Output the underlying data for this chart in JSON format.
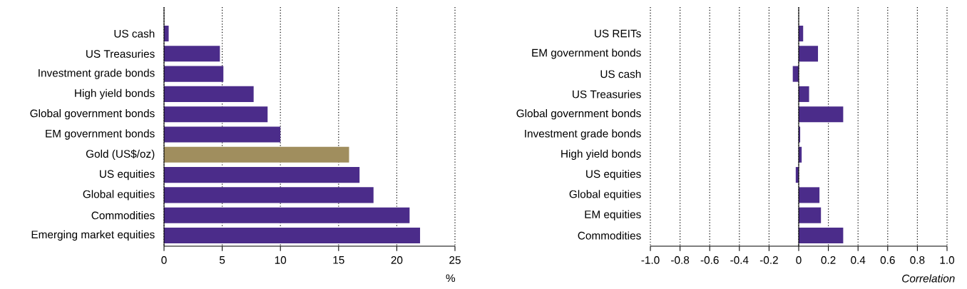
{
  "chart_data": [
    {
      "type": "bar",
      "orientation": "horizontal",
      "xlabel": "%",
      "categories": [
        "US cash",
        "US Treasuries",
        "Investment grade bonds",
        "High yield bonds",
        "Global government bonds",
        "EM government bonds",
        "Gold (US$/oz)",
        "US equities",
        "Global equities",
        "Commodities",
        "Emerging market equities"
      ],
      "values": [
        0.4,
        4.8,
        5.1,
        7.7,
        8.9,
        10.0,
        15.9,
        16.8,
        18.0,
        21.1,
        22.0
      ],
      "colors": [
        "#4b2c8a",
        "#4b2c8a",
        "#4b2c8a",
        "#4b2c8a",
        "#4b2c8a",
        "#4b2c8a",
        "#a08e5e",
        "#4b2c8a",
        "#4b2c8a",
        "#4b2c8a",
        "#4b2c8a"
      ],
      "xlim": [
        0,
        25
      ],
      "xticks": [
        0,
        5,
        10,
        15,
        20,
        25
      ],
      "grid": "x"
    },
    {
      "type": "bar",
      "orientation": "horizontal",
      "xlabel": "Correlation",
      "categories": [
        "US REITs",
        "EM government bonds",
        "US cash",
        "US Treasuries",
        "Global government bonds",
        "Investment grade bonds",
        "High yield bonds",
        "US equities",
        "Global equities",
        "EM equities",
        "Commodities"
      ],
      "values": [
        0.03,
        0.13,
        -0.04,
        0.07,
        0.3,
        0.01,
        0.02,
        -0.02,
        0.14,
        0.15,
        0.3
      ],
      "color": "#4b2c8a",
      "xlim": [
        -1,
        1
      ],
      "xticks": [
        {
          "value": -1,
          "label": "-1.0"
        },
        -0.8,
        -0.6,
        -0.4,
        -0.2,
        0,
        0.2,
        0.4,
        0.6,
        0.8,
        {
          "value": 1,
          "label": "1.0"
        }
      ],
      "grid": "x"
    }
  ]
}
